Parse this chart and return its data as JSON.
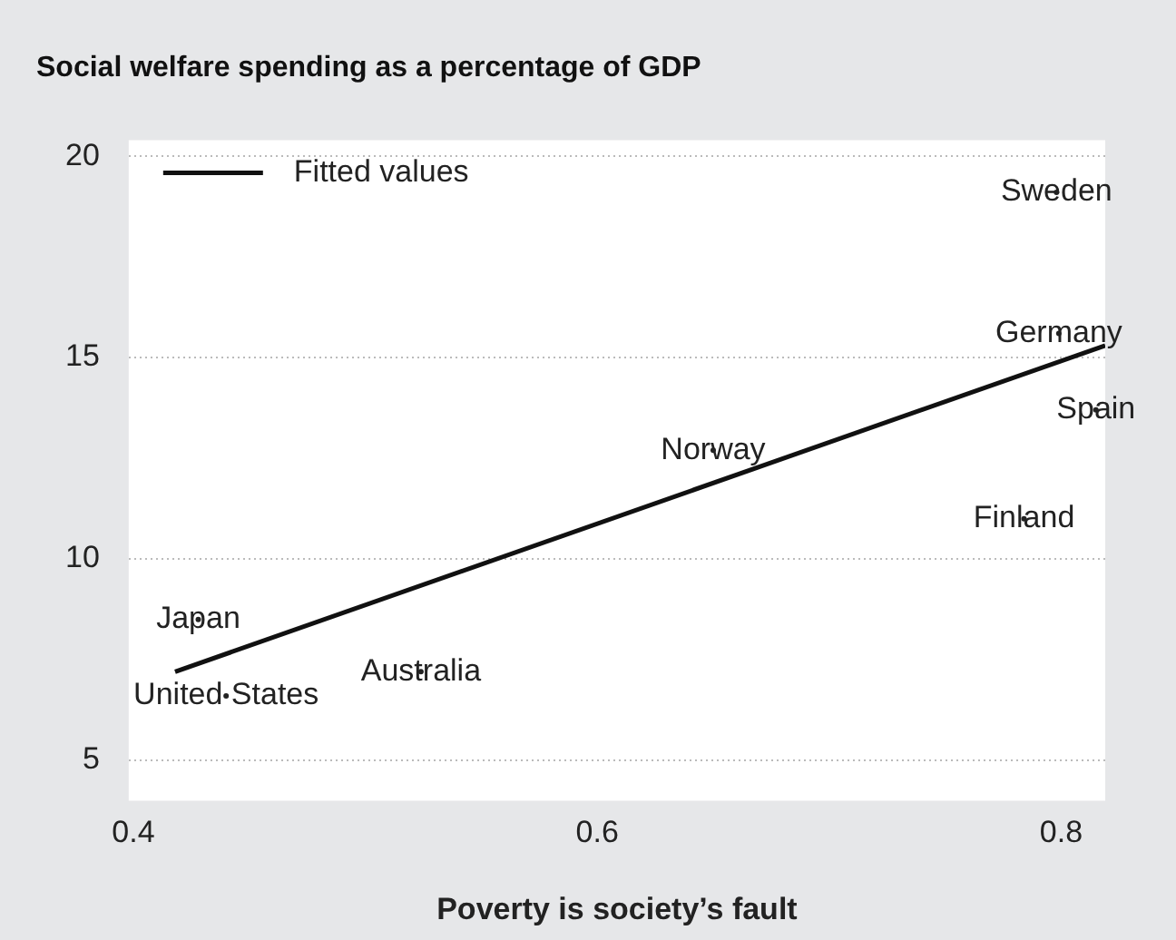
{
  "chart_data": {
    "type": "scatter",
    "title": "Social welfare spending as a percentage of GDP",
    "xlabel": "Poverty is society’s fault",
    "xlim": [
      0.398,
      0.819
    ],
    "xticks": [
      0.4,
      0.6,
      0.8
    ],
    "ylim": [
      4,
      20.4
    ],
    "yticks": [
      5,
      10,
      15,
      20
    ],
    "grid": "y",
    "legend": "top left",
    "series": [
      {
        "type": "scatter",
        "marker": "circle",
        "color": "#222222",
        "x": [
          0.798,
          0.799,
          0.815,
          0.65,
          0.784,
          0.428,
          0.524,
          0.44
        ],
        "values": [
          19.1,
          15.6,
          13.7,
          12.7,
          11.0,
          8.5,
          7.2,
          6.6
        ],
        "value_labels": [
          "Sweden",
          "Germany",
          "Spain",
          "Norway",
          "Finland",
          "Japan",
          "Australia",
          "United States"
        ]
      },
      {
        "type": "line",
        "name": "Fitted values",
        "color": "#111111",
        "marker": "none",
        "line_style": "solid",
        "x": [
          0.418,
          0.819
        ],
        "values": [
          7.2,
          15.3
        ]
      }
    ]
  }
}
